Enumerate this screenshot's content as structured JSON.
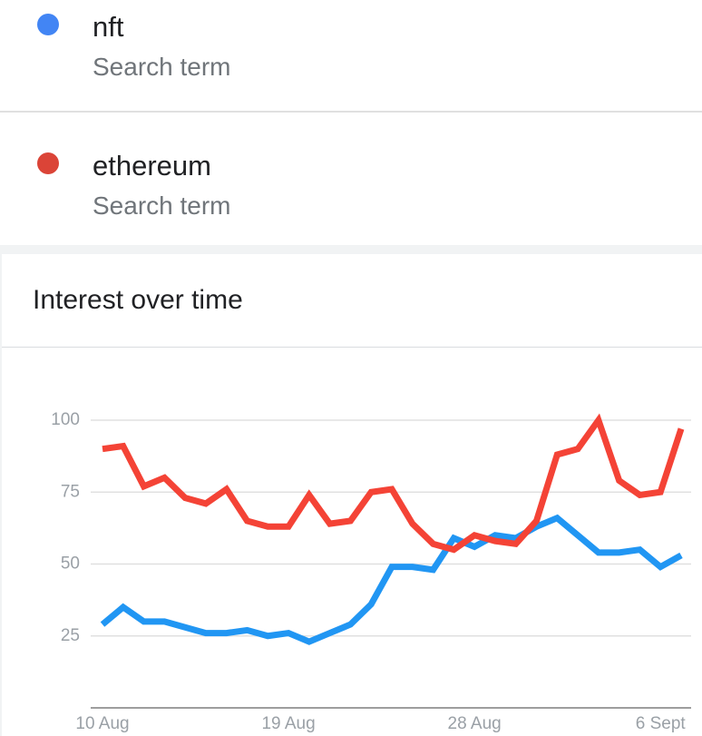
{
  "search_terms": [
    {
      "name": "nft",
      "subtitle": "Search term",
      "color": "#4285f4"
    },
    {
      "name": "ethereum",
      "subtitle": "Search term",
      "color": "#db4437"
    }
  ],
  "chart_data": {
    "type": "line",
    "title": "Interest over time",
    "categories": [
      "10 Aug",
      null,
      null,
      null,
      null,
      null,
      null,
      null,
      null,
      "19 Aug",
      null,
      null,
      null,
      null,
      null,
      null,
      null,
      null,
      "28 Aug",
      null,
      null,
      null,
      null,
      null,
      null,
      null,
      null,
      "6 Sept",
      null
    ],
    "series": [
      {
        "name": "nft",
        "color": "#2196f3",
        "values": [
          29,
          35,
          30,
          30,
          28,
          26,
          26,
          27,
          25,
          26,
          23,
          26,
          29,
          36,
          49,
          49,
          48,
          59,
          56,
          60,
          59,
          63,
          66,
          60,
          54,
          54,
          55,
          49,
          53
        ]
      },
      {
        "name": "ethereum",
        "color": "#f44336",
        "values": [
          90,
          91,
          77,
          80,
          73,
          71,
          76,
          65,
          63,
          63,
          74,
          64,
          65,
          75,
          76,
          64,
          57,
          55,
          60,
          58,
          57,
          65,
          88,
          90,
          100,
          79,
          74,
          75,
          97
        ]
      }
    ],
    "ylim": [
      0,
      100
    ],
    "yticks": [
      25,
      50,
      75,
      100
    ],
    "grid": true
  }
}
